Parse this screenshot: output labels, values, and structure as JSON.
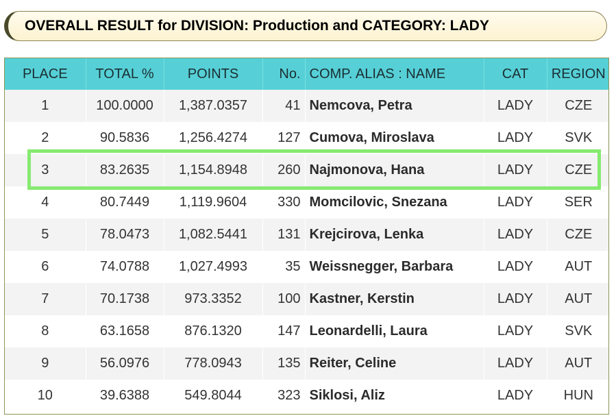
{
  "title": "OVERALL RESULT for DIVISION: Production and CATEGORY: LADY",
  "columns": [
    "PLACE",
    "TOTAL %",
    "POINTS",
    "No.",
    "COMP. ALIAS : NAME",
    "CAT",
    "REGION"
  ],
  "rows": [
    {
      "place": "1",
      "total": "100.0000",
      "points": "1,387.0357",
      "no": "41",
      "name": "Nemcova, Petra",
      "cat": "LADY",
      "region": "CZE"
    },
    {
      "place": "2",
      "total": "90.5836",
      "points": "1,256.4274",
      "no": "127",
      "name": "Cumova, Miroslava",
      "cat": "LADY",
      "region": "SVK"
    },
    {
      "place": "3",
      "total": "83.2635",
      "points": "1,154.8948",
      "no": "260",
      "name": "Najmonova, Hana",
      "cat": "LADY",
      "region": "CZE"
    },
    {
      "place": "4",
      "total": "80.7449",
      "points": "1,119.9604",
      "no": "330",
      "name": "Momcilovic, Snezana",
      "cat": "LADY",
      "region": "SER"
    },
    {
      "place": "5",
      "total": "78.0473",
      "points": "1,082.5441",
      "no": "131",
      "name": "Krejcirova, Lenka",
      "cat": "LADY",
      "region": "CZE"
    },
    {
      "place": "6",
      "total": "74.0788",
      "points": "1,027.4993",
      "no": "35",
      "name": "Weissnegger, Barbara",
      "cat": "LADY",
      "region": "AUT"
    },
    {
      "place": "7",
      "total": "70.1738",
      "points": "973.3352",
      "no": "100",
      "name": "Kastner, Kerstin",
      "cat": "LADY",
      "region": "AUT"
    },
    {
      "place": "8",
      "total": "63.1658",
      "points": "876.1320",
      "no": "147",
      "name": "Leonardelli, Laura",
      "cat": "LADY",
      "region": "SVK"
    },
    {
      "place": "9",
      "total": "56.0976",
      "points": "778.0943",
      "no": "135",
      "name": "Reiter, Celine",
      "cat": "LADY",
      "region": "AUT"
    },
    {
      "place": "10",
      "total": "39.6388",
      "points": "549.8044",
      "no": "323",
      "name": "Siklosi, Aliz",
      "cat": "LADY",
      "region": "HUN"
    }
  ],
  "highlighted_place": "3",
  "colors": {
    "header": "#56d0d6",
    "highlight": "#86ea70",
    "row_alt": "#f3f3f3"
  }
}
